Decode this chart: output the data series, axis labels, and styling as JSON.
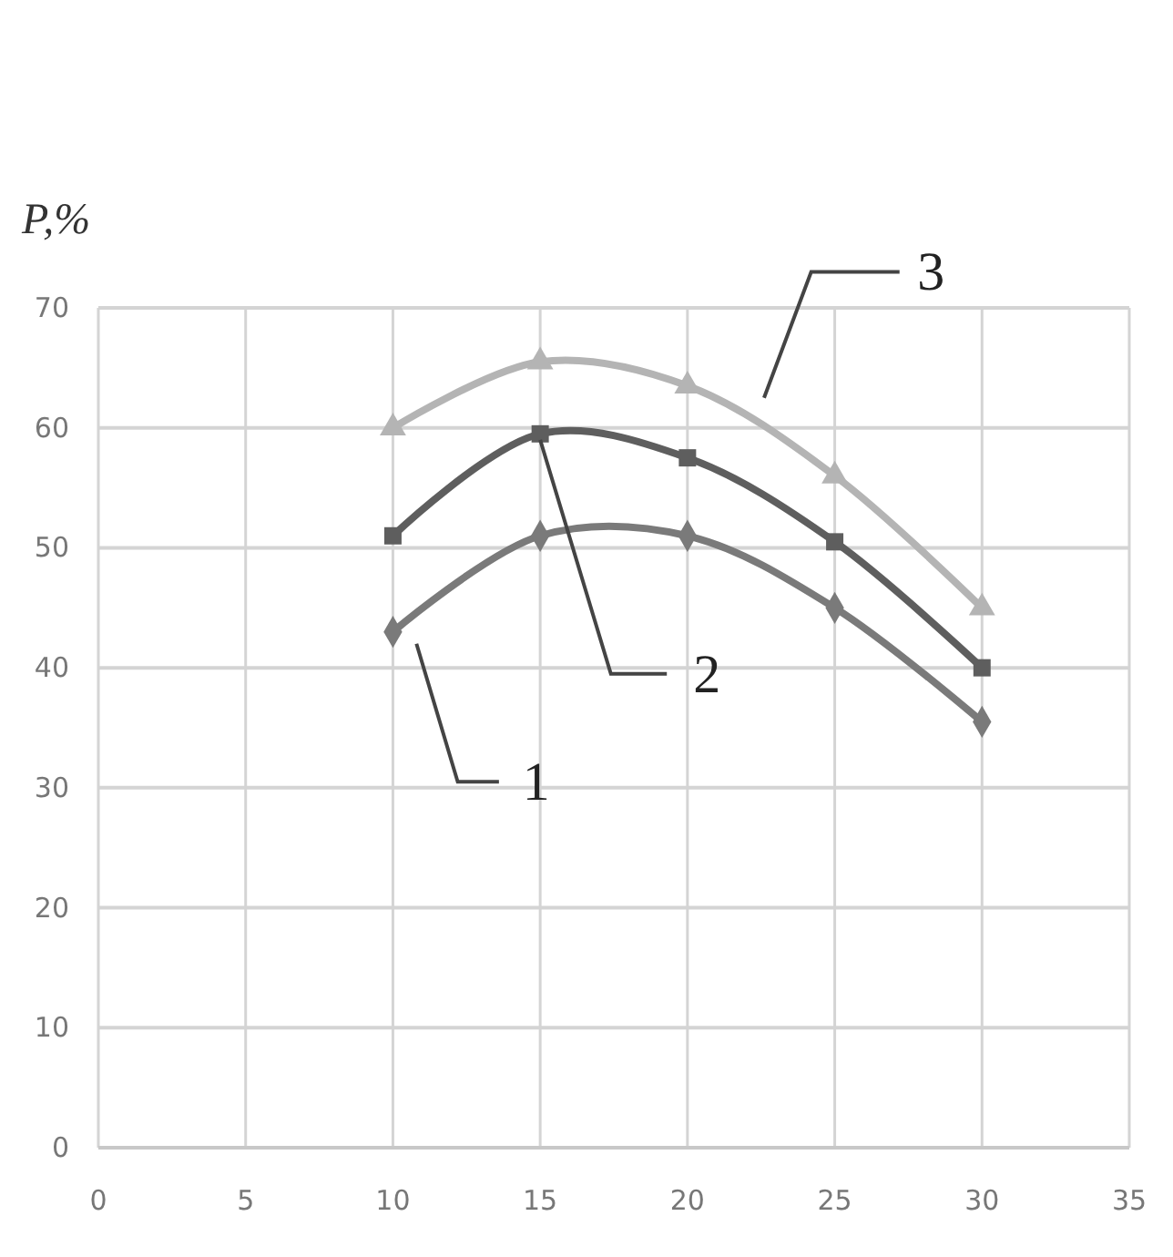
{
  "chart_data": {
    "type": "line",
    "ylabel": "P,%",
    "x": [
      10,
      15,
      20,
      25,
      30
    ],
    "series": [
      {
        "name": "1",
        "color": "#7a7a7a",
        "marker": "diamond",
        "values": [
          43,
          51,
          51,
          45,
          35.5
        ]
      },
      {
        "name": "2",
        "color": "#5e5e5e",
        "marker": "square",
        "values": [
          51,
          59.5,
          57.5,
          50.5,
          40
        ]
      },
      {
        "name": "3",
        "color": "#b4b4b4",
        "marker": "triangle",
        "values": [
          60,
          65.5,
          63.5,
          56,
          45
        ]
      }
    ],
    "xlim": [
      0,
      35
    ],
    "xticks": [
      0,
      5,
      10,
      15,
      20,
      25,
      30,
      35
    ],
    "ylim": [
      0,
      70
    ],
    "yticks": [
      0,
      10,
      20,
      30,
      40,
      50,
      60,
      70
    ],
    "grid": true,
    "legend": false
  }
}
